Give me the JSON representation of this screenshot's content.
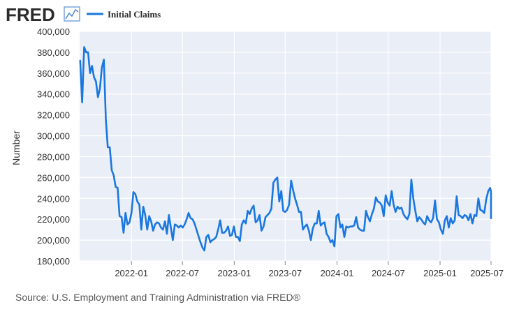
{
  "header": {
    "logo_text": "FRED",
    "logo_icon": "line-graph-icon",
    "legend_label": "Initial Claims"
  },
  "colors": {
    "series": "#1a77e0",
    "plot_background": "#eaeef6",
    "logo": "#2b2b2b",
    "logo_icon_stroke": "#5b8ed6"
  },
  "source_note": "Source: U.S. Employment and Training Administration via FRED®",
  "chart_data": {
    "type": "line",
    "title": "",
    "xlabel": "",
    "ylabel": "Number",
    "ylim": [
      180000,
      400000
    ],
    "y_ticks": [
      180000,
      200000,
      220000,
      240000,
      260000,
      280000,
      300000,
      320000,
      340000,
      360000,
      380000,
      400000
    ],
    "y_tick_labels": [
      "180,000",
      "200,000",
      "220,000",
      "240,000",
      "260,000",
      "280,000",
      "300,000",
      "320,000",
      "340,000",
      "360,000",
      "380,000",
      "400,000"
    ],
    "x_range": [
      "2021-07",
      "2025-07"
    ],
    "x_ticks": [
      "2022-01",
      "2022-07",
      "2023-01",
      "2023-07",
      "2024-01",
      "2024-07",
      "2025-01",
      "2025-07"
    ],
    "grid": true,
    "legend": "top-left",
    "series": [
      {
        "name": "Initial Claims",
        "x_start": "2021-07-03",
        "frequency": "weekly",
        "values": [
          372000,
          332000,
          385000,
          380000,
          380000,
          360000,
          367000,
          356000,
          352000,
          337000,
          345000,
          365000,
          373000,
          316000,
          289000,
          289000,
          267000,
          262000,
          251000,
          250000,
          223000,
          222000,
          207000,
          226000,
          215000,
          217000,
          226000,
          246000,
          244000,
          237000,
          234000,
          210000,
          232000,
          224000,
          210000,
          223000,
          218000,
          209000,
          215000,
          217000,
          216000,
          212000,
          210000,
          218000,
          206000,
          224000,
          212000,
          200000,
          215000,
          214000,
          212000,
          214000,
          212000,
          215000,
          220000,
          226000,
          221000,
          220000,
          216000,
          210000,
          204000,
          198000,
          193000,
          190000,
          203000,
          205000,
          198000,
          200000,
          201000,
          203000,
          210000,
          219000,
          207000,
          207000,
          209000,
          213000,
          204000,
          205000,
          213000,
          203000,
          203000,
          199000,
          215000,
          219000,
          216000,
          228000,
          225000,
          230000,
          233000,
          217000,
          219000,
          224000,
          209000,
          213000,
          222000,
          224000,
          226000,
          230000,
          255000,
          258000,
          260000,
          237000,
          247000,
          228000,
          227000,
          229000,
          234000,
          257000,
          248000,
          240000,
          234000,
          227000,
          227000,
          210000,
          213000,
          215000,
          209000,
          200000,
          211000,
          216000,
          216000,
          228000,
          214000,
          216000,
          217000,
          206000,
          203000,
          198000,
          200000,
          194000,
          223000,
          225000,
          212000,
          215000,
          203000,
          213000,
          212000,
          213000,
          213000,
          214000,
          222000,
          212000,
          210000,
          209000,
          209000,
          228000,
          222000,
          218000,
          225000,
          230000,
          241000,
          237000,
          236000,
          233000,
          223000,
          243000,
          236000,
          233000,
          247000,
          234000,
          227000,
          232000,
          230000,
          231000,
          225000,
          222000,
          220000,
          225000,
          258000,
          240000,
          228000,
          218000,
          222000,
          220000,
          217000,
          215000,
          223000,
          219000,
          217000,
          221000,
          238000,
          220000,
          217000,
          210000,
          206000,
          219000,
          223000,
          212000,
          221000,
          216000,
          219000,
          242000,
          224000,
          223000,
          221000,
          224000,
          223000,
          219000,
          225000,
          216000,
          224000,
          223000,
          240000,
          229000,
          228000,
          226000,
          239000,
          247000,
          250000,
          246000,
          236000,
          231000,
          228000,
          221000
        ]
      }
    ]
  }
}
